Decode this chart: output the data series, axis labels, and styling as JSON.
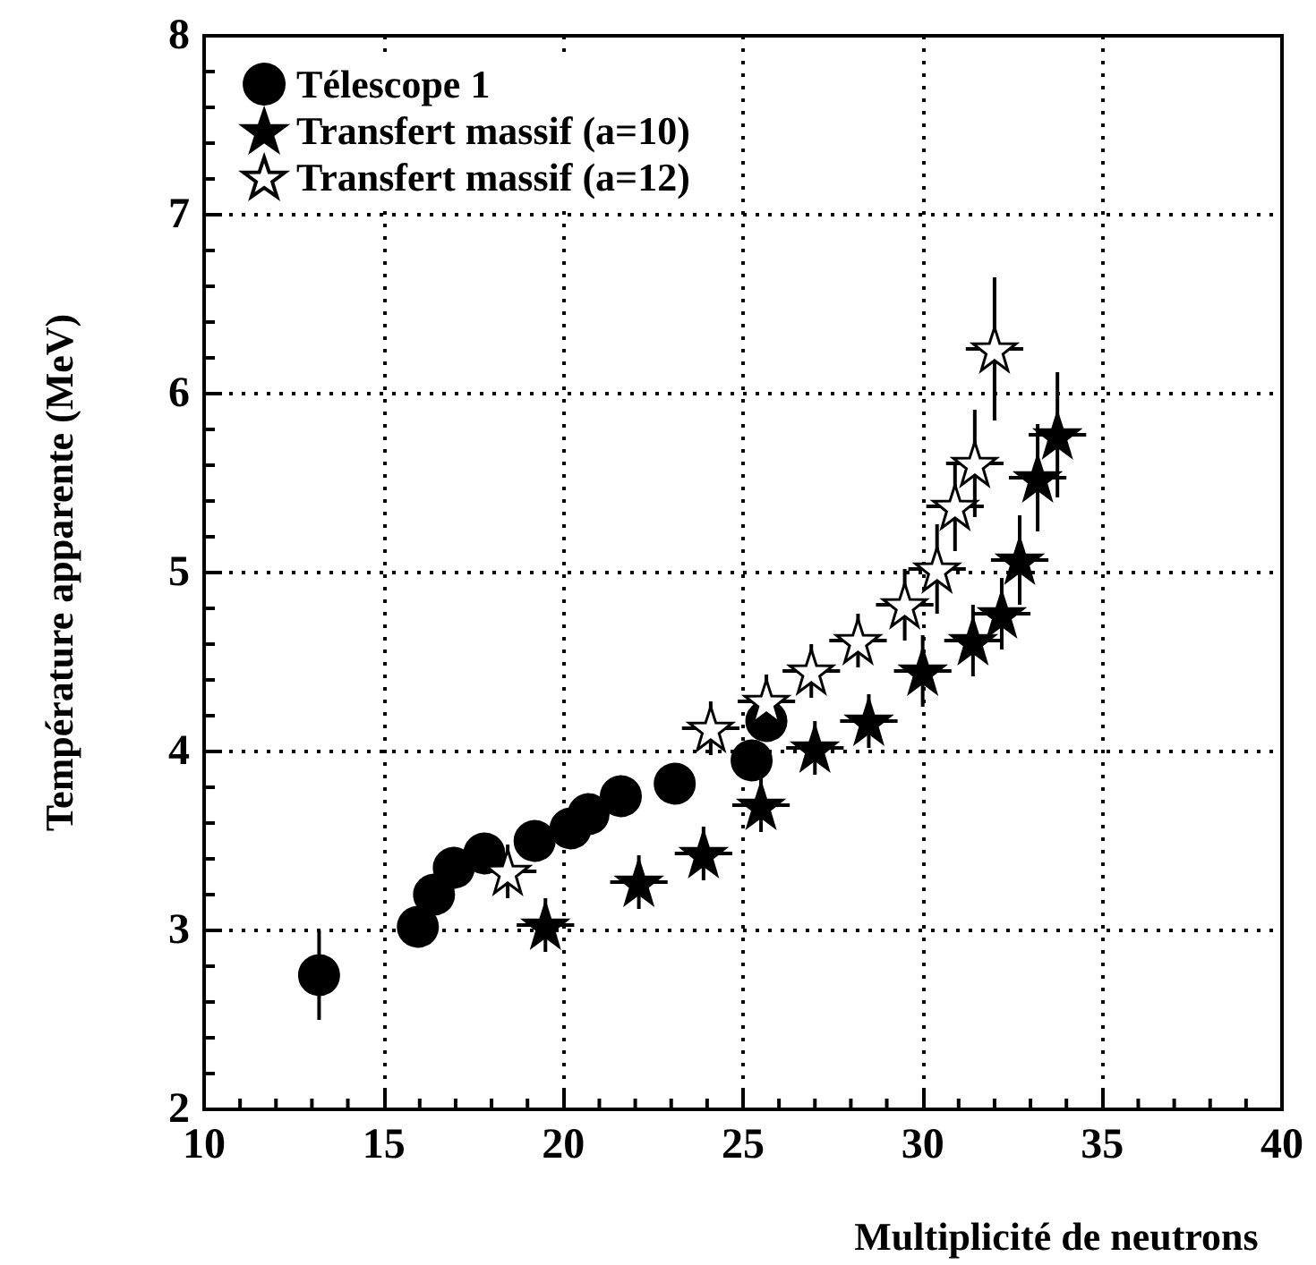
{
  "chart_data": {
    "type": "scatter",
    "xlabel": "Multiplicité de neutrons",
    "ylabel": "Température apparente (MeV)",
    "xlim": [
      10,
      40
    ],
    "ylim": [
      2,
      8
    ],
    "xticks": [
      10,
      15,
      20,
      25,
      30,
      35,
      40
    ],
    "yticks": [
      2,
      3,
      4,
      5,
      6,
      7,
      8
    ],
    "grid": true,
    "legend": "top left",
    "series": [
      {
        "name": "Télescope 1",
        "color": "#000000",
        "marker": "circle",
        "x": [
          13.2,
          15.95,
          16.4,
          16.95,
          17.8,
          19.2,
          20.2,
          20.7,
          21.6,
          23.1,
          25.24,
          25.65
        ],
        "values": [
          2.75,
          3.02,
          3.2,
          3.35,
          3.43,
          3.5,
          3.57,
          3.65,
          3.75,
          3.82,
          3.95,
          4.17
        ],
        "errors": [
          0.25,
          null,
          null,
          null,
          null,
          null,
          null,
          null,
          null,
          null,
          null,
          null
        ]
      },
      {
        "name": "Transfert massif (a=10)",
        "color": "#000000",
        "marker": "star",
        "x": [
          19.5,
          22.1,
          23.9,
          25.5,
          27.0,
          28.5,
          30.0,
          31.4,
          32.2,
          32.7,
          33.2,
          33.75
        ],
        "values": [
          3.03,
          3.27,
          3.43,
          3.7,
          4.02,
          4.17,
          4.45,
          4.62,
          4.77,
          5.07,
          5.53,
          5.77
        ],
        "errors": [
          0.15,
          0.15,
          0.15,
          0.15,
          0.15,
          0.15,
          0.2,
          0.2,
          0.2,
          0.25,
          0.3,
          0.35
        ],
        "xerrors": [
          0.8,
          0.8,
          0.8,
          0.8,
          0.8,
          0.8,
          0.8,
          0.8,
          0.8,
          0.8,
          0.8,
          0.8
        ]
      },
      {
        "name": "Transfert massif (a=12)",
        "color": "#ffffff",
        "marker": "star",
        "x": [
          18.45,
          24.1,
          25.65,
          26.9,
          28.2,
          29.5,
          30.4,
          30.9,
          31.45,
          32.0
        ],
        "values": [
          3.33,
          4.13,
          4.28,
          4.45,
          4.62,
          4.82,
          5.02,
          5.37,
          5.61,
          6.25
        ],
        "errors": [
          0.15,
          0.15,
          0.15,
          0.15,
          0.15,
          0.2,
          0.25,
          0.25,
          0.3,
          0.4
        ],
        "xerrors": [
          0.8,
          0.8,
          0.8,
          0.8,
          0.8,
          0.8,
          0.8,
          0.8,
          0.8,
          0.8
        ]
      }
    ]
  }
}
